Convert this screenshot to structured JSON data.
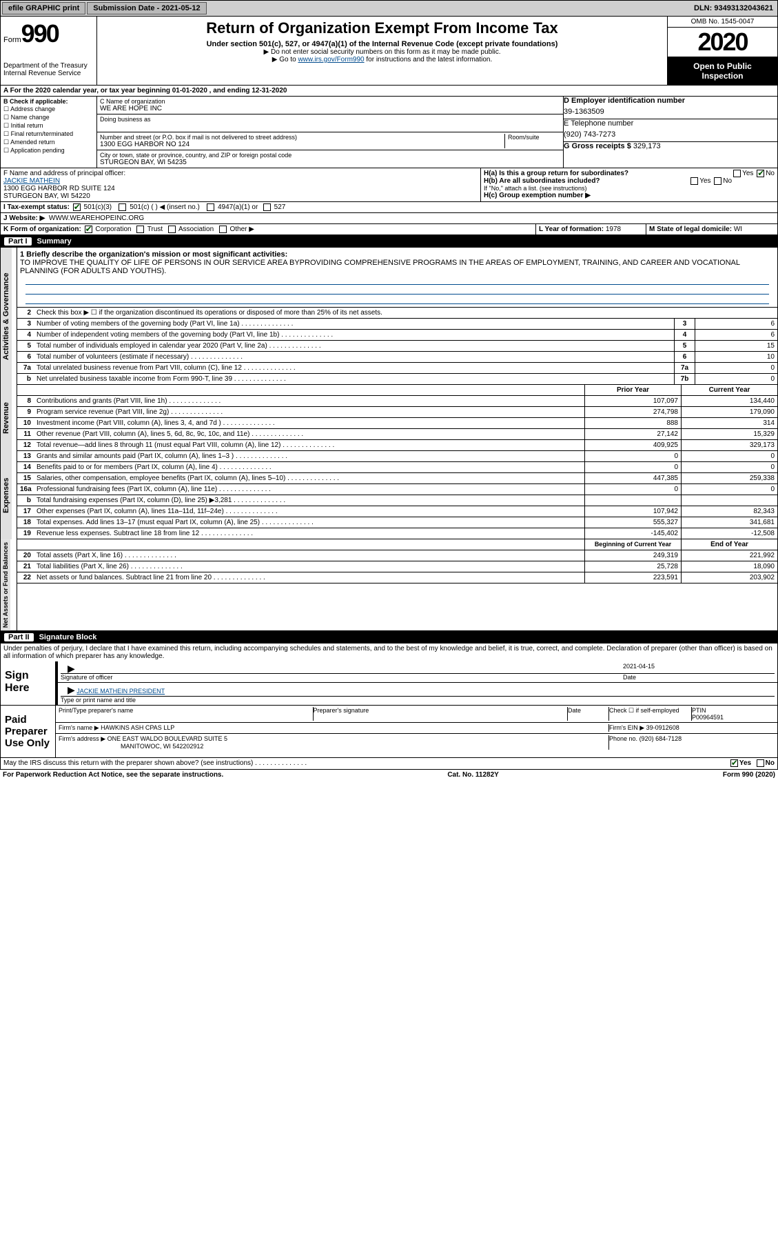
{
  "top": {
    "efile": "efile GRAPHIC print",
    "submission": "Submission Date - 2021-05-12",
    "dln": "DLN: 93493132043621"
  },
  "header": {
    "form_label": "Form",
    "form_num": "990",
    "dept": "Department of the Treasury\nInternal Revenue Service",
    "title": "Return of Organization Exempt From Income Tax",
    "sub": "Under section 501(c), 527, or 4947(a)(1) of the Internal Revenue Code (except private foundations)",
    "note1": "▶ Do not enter social security numbers on this form as it may be made public.",
    "note2_pre": "▶ Go to ",
    "note2_link": "www.irs.gov/Form990",
    "note2_post": " for instructions and the latest information.",
    "omb": "OMB No. 1545-0047",
    "year": "2020",
    "inspect": "Open to Public Inspection"
  },
  "period": "A For the 2020 calendar year, or tax year beginning 01-01-2020    , and ending 12-31-2020",
  "B": {
    "label": "B Check if applicable:",
    "items": [
      "Address change",
      "Name change",
      "Initial return",
      "Final return/terminated",
      "Amended return",
      "Application pending"
    ]
  },
  "C": {
    "name_label": "C Name of organization",
    "name": "WE ARE HOPE INC",
    "dba_label": "Doing business as",
    "addr_label": "Number and street (or P.O. box if mail is not delivered to street address)",
    "room_label": "Room/suite",
    "addr": "1300 EGG HARBOR NO 124",
    "city_label": "City or town, state or province, country, and ZIP or foreign postal code",
    "city": "STURGEON BAY, WI  54235"
  },
  "D": {
    "label": "D Employer identification number",
    "val": "39-1363509"
  },
  "E": {
    "label": "E Telephone number",
    "val": "(920) 743-7273"
  },
  "G": {
    "label": "G Gross receipts $",
    "val": "329,173"
  },
  "F": {
    "label": "F  Name and address of principal officer:",
    "name": "JACKIE MATHEIN",
    "addr": "1300 EGG HARBOR RD SUITE 124\nSTURGEON BAY, WI  54220"
  },
  "H": {
    "a": "H(a)  Is this a group return for subordinates?",
    "b": "H(b)  Are all subordinates included?",
    "b_note": "If \"No,\" attach a list. (see instructions)",
    "c": "H(c)  Group exemption number ▶",
    "yes": "Yes",
    "no": "No"
  },
  "I": {
    "label": "I  Tax-exempt status:",
    "o1": "501(c)(3)",
    "o2": "501(c) (  ) ◀ (insert no.)",
    "o3": "4947(a)(1) or",
    "o4": "527"
  },
  "J": {
    "label": "J   Website: ▶",
    "val": "WWW.WEAREHOPEINC.ORG"
  },
  "K": {
    "label": "K Form of organization:",
    "o1": "Corporation",
    "o2": "Trust",
    "o3": "Association",
    "o4": "Other ▶"
  },
  "L": {
    "label": "L Year of formation:",
    "val": "1978"
  },
  "M": {
    "label": "M State of legal domicile:",
    "val": "WI"
  },
  "part1": {
    "num": "Part I",
    "title": "Summary"
  },
  "mission": {
    "label": "1  Briefly describe the organization's mission or most significant activities:",
    "text": "TO IMPROVE THE QUALITY OF LIFE OF PERSONS IN OUR SERVICE AREA BYPROVIDING COMPREHENSIVE PROGRAMS IN THE AREAS OF EMPLOYMENT, TRAINING, AND CAREER AND VOCATIONAL PLANNING (FOR ADULTS AND YOUTHS)."
  },
  "act_lines": [
    {
      "n": "2",
      "t": "Check this box ▶ ☐ if the organization discontinued its operations or disposed of more than 25% of its net assets."
    },
    {
      "n": "3",
      "t": "Number of voting members of the governing body (Part VI, line 1a)",
      "cn": "3",
      "cv": "6"
    },
    {
      "n": "4",
      "t": "Number of independent voting members of the governing body (Part VI, line 1b)",
      "cn": "4",
      "cv": "6"
    },
    {
      "n": "5",
      "t": "Total number of individuals employed in calendar year 2020 (Part V, line 2a)",
      "cn": "5",
      "cv": "15"
    },
    {
      "n": "6",
      "t": "Total number of volunteers (estimate if necessary)",
      "cn": "6",
      "cv": "10"
    },
    {
      "n": "7a",
      "t": "Total unrelated business revenue from Part VIII, column (C), line 12",
      "cn": "7a",
      "cv": "0"
    },
    {
      "n": "b",
      "t": "Net unrelated business taxable income from Form 990-T, line 39",
      "cn": "7b",
      "cv": "0"
    }
  ],
  "col_hdr": {
    "py": "Prior Year",
    "cy": "Current Year"
  },
  "rev_lines": [
    {
      "n": "8",
      "t": "Contributions and grants (Part VIII, line 1h)",
      "py": "107,097",
      "cy": "134,440"
    },
    {
      "n": "9",
      "t": "Program service revenue (Part VIII, line 2g)",
      "py": "274,798",
      "cy": "179,090"
    },
    {
      "n": "10",
      "t": "Investment income (Part VIII, column (A), lines 3, 4, and 7d )",
      "py": "888",
      "cy": "314"
    },
    {
      "n": "11",
      "t": "Other revenue (Part VIII, column (A), lines 5, 6d, 8c, 9c, 10c, and 11e)",
      "py": "27,142",
      "cy": "15,329"
    },
    {
      "n": "12",
      "t": "Total revenue—add lines 8 through 11 (must equal Part VIII, column (A), line 12)",
      "py": "409,925",
      "cy": "329,173"
    }
  ],
  "exp_lines": [
    {
      "n": "13",
      "t": "Grants and similar amounts paid (Part IX, column (A), lines 1–3 )",
      "py": "0",
      "cy": "0"
    },
    {
      "n": "14",
      "t": "Benefits paid to or for members (Part IX, column (A), line 4)",
      "py": "0",
      "cy": "0"
    },
    {
      "n": "15",
      "t": "Salaries, other compensation, employee benefits (Part IX, column (A), lines 5–10)",
      "py": "447,385",
      "cy": "259,338"
    },
    {
      "n": "16a",
      "t": "Professional fundraising fees (Part IX, column (A), line 11e)",
      "py": "0",
      "cy": "0"
    },
    {
      "n": "b",
      "t": "Total fundraising expenses (Part IX, column (D), line 25) ▶3,281",
      "py": "",
      "cy": "",
      "shade": true
    },
    {
      "n": "17",
      "t": "Other expenses (Part IX, column (A), lines 11a–11d, 11f–24e)",
      "py": "107,942",
      "cy": "82,343"
    },
    {
      "n": "18",
      "t": "Total expenses. Add lines 13–17 (must equal Part IX, column (A), line 25)",
      "py": "555,327",
      "cy": "341,681"
    },
    {
      "n": "19",
      "t": "Revenue less expenses. Subtract line 18 from line 12",
      "py": "-145,402",
      "cy": "-12,508"
    }
  ],
  "na_hdr": {
    "by": "Beginning of Current Year",
    "ey": "End of Year"
  },
  "na_lines": [
    {
      "n": "20",
      "t": "Total assets (Part X, line 16)",
      "py": "249,319",
      "cy": "221,992"
    },
    {
      "n": "21",
      "t": "Total liabilities (Part X, line 26)",
      "py": "25,728",
      "cy": "18,090"
    },
    {
      "n": "22",
      "t": "Net assets or fund balances. Subtract line 21 from line 20",
      "py": "223,591",
      "cy": "203,902"
    }
  ],
  "part2": {
    "num": "Part II",
    "title": "Signature Block"
  },
  "perjury": "Under penalties of perjury, I declare that I have examined this return, including accompanying schedules and statements, and to the best of my knowledge and belief, it is true, correct, and complete. Declaration of preparer (other than officer) is based on all information of which preparer has any knowledge.",
  "sign": {
    "left": "Sign Here",
    "sig_label": "Signature of officer",
    "date_label": "Date",
    "date": "2021-04-15",
    "name": "JACKIE MATHEIN  PRESIDENT",
    "name_label": "Type or print name and title"
  },
  "paid": {
    "left": "Paid Preparer Use Only",
    "pt": "Print/Type preparer's name",
    "ps": "Preparer's signature",
    "dt": "Date",
    "chk": "Check ☐ if self-employed",
    "ptin_label": "PTIN",
    "ptin": "P00964591",
    "firm_label": "Firm's name   ▶",
    "firm": "HAWKINS ASH CPAS LLP",
    "ein_label": "Firm's EIN ▶",
    "ein": "39-0912608",
    "addr_label": "Firm's address ▶",
    "addr": "ONE EAST WALDO BOULEVARD SUITE 5",
    "addr2": "MANITOWOC, WI  542202912",
    "phone_label": "Phone no.",
    "phone": "(920) 684-7128"
  },
  "discuss": "May the IRS discuss this return with the preparer shown above? (see instructions)",
  "footer": {
    "left": "For Paperwork Reduction Act Notice, see the separate instructions.",
    "mid": "Cat. No. 11282Y",
    "right": "Form 990 (2020)"
  },
  "vlabels": {
    "act": "Activities & Governance",
    "rev": "Revenue",
    "exp": "Expenses",
    "na": "Net Assets or Fund Balances"
  }
}
